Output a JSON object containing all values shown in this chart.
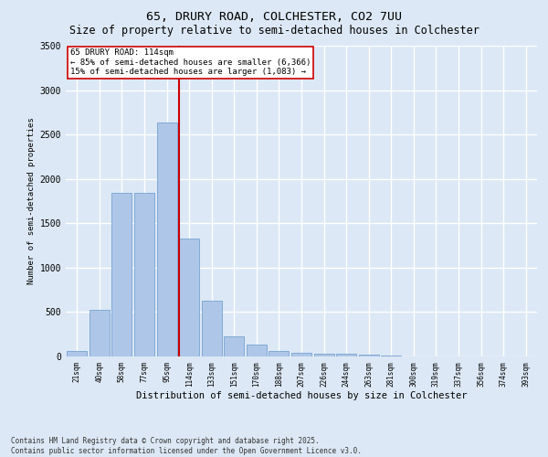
{
  "title1": "65, DRURY ROAD, COLCHESTER, CO2 7UU",
  "title2": "Size of property relative to semi-detached houses in Colchester",
  "xlabel": "Distribution of semi-detached houses by size in Colchester",
  "ylabel": "Number of semi-detached properties",
  "bins": [
    "21sqm",
    "40sqm",
    "58sqm",
    "77sqm",
    "95sqm",
    "114sqm",
    "133sqm",
    "151sqm",
    "170sqm",
    "188sqm",
    "207sqm",
    "226sqm",
    "244sqm",
    "263sqm",
    "281sqm",
    "300sqm",
    "319sqm",
    "337sqm",
    "356sqm",
    "374sqm",
    "393sqm"
  ],
  "values": [
    65,
    530,
    1840,
    1840,
    2640,
    1330,
    630,
    230,
    130,
    65,
    45,
    30,
    30,
    20,
    10,
    5,
    3,
    2,
    1,
    1,
    1
  ],
  "highlight_index": 5,
  "bar_color": "#aec6e8",
  "bar_edge_color": "#6699cc",
  "highlight_line_color": "#cc0000",
  "annotation_text": "65 DRURY ROAD: 114sqm\n← 85% of semi-detached houses are smaller (6,366)\n15% of semi-detached houses are larger (1,083) →",
  "annotation_box_color": "#ffffff",
  "annotation_box_edge": "#cc0000",
  "ylim": [
    0,
    3500
  ],
  "yticks": [
    0,
    500,
    1000,
    1500,
    2000,
    2500,
    3000,
    3500
  ],
  "footer": "Contains HM Land Registry data © Crown copyright and database right 2025.\nContains public sector information licensed under the Open Government Licence v3.0.",
  "bg_color": "#dce8f5",
  "plot_bg_color": "#dce8f5",
  "grid_color": "#ffffff",
  "title1_fontsize": 9.5,
  "title2_fontsize": 8.5,
  "annotation_fontsize": 6.5,
  "footer_fontsize": 5.5,
  "xlabel_fontsize": 7.5,
  "ylabel_fontsize": 6.5,
  "xtick_fontsize": 5.5,
  "ytick_fontsize": 7
}
